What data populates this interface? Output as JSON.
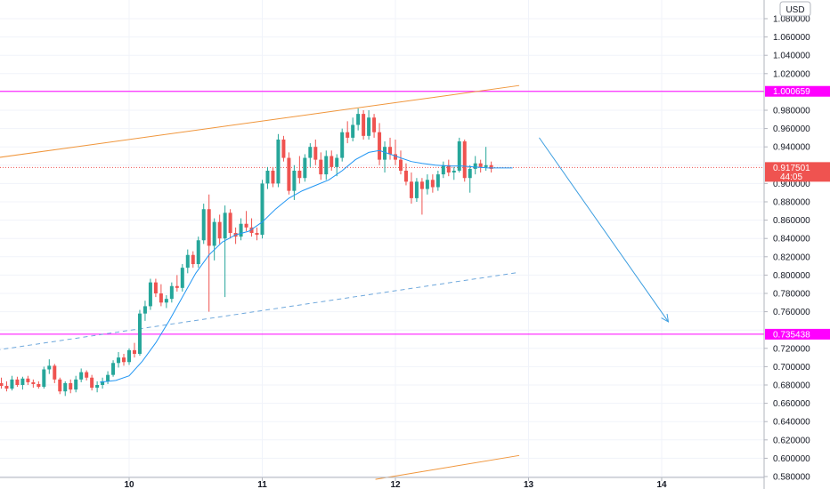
{
  "chart_data": {
    "type": "candlestick",
    "currency": "USD",
    "ylim": [
      0.58,
      1.09
    ],
    "y_ticks": [
      "1.080000",
      "1.060000",
      "1.040000",
      "1.020000",
      "0.980000",
      "0.960000",
      "0.940000",
      "0.900000",
      "0.880000",
      "0.860000",
      "0.840000",
      "0.820000",
      "0.800000",
      "0.780000",
      "0.760000",
      "0.720000",
      "0.700000",
      "0.680000",
      "0.660000",
      "0.640000",
      "0.620000",
      "0.600000",
      "0.580000"
    ],
    "x_labels": [
      {
        "label": "10",
        "t": 10
      },
      {
        "label": "11",
        "t": 11
      },
      {
        "label": "12",
        "t": 12
      },
      {
        "label": "13",
        "t": 13
      },
      {
        "label": "14",
        "t": 14
      }
    ],
    "xlim": [
      9.0,
      14.75
    ],
    "grid": true,
    "candles": [
      [
        9.0,
        0.678,
        0.685,
        0.672,
        0.682
      ],
      [
        9.04,
        0.682,
        0.688,
        0.676,
        0.679
      ],
      [
        9.08,
        0.679,
        0.684,
        0.673,
        0.676
      ],
      [
        9.12,
        0.676,
        0.69,
        0.674,
        0.686
      ],
      [
        9.16,
        0.686,
        0.689,
        0.678,
        0.68
      ],
      [
        9.2,
        0.68,
        0.689,
        0.675,
        0.687
      ],
      [
        9.24,
        0.687,
        0.69,
        0.68,
        0.683
      ],
      [
        9.28,
        0.683,
        0.686,
        0.677,
        0.681
      ],
      [
        9.32,
        0.681,
        0.684,
        0.676,
        0.678
      ],
      [
        9.36,
        0.678,
        0.7,
        0.676,
        0.697
      ],
      [
        9.4,
        0.697,
        0.708,
        0.692,
        0.701
      ],
      [
        9.44,
        0.701,
        0.703,
        0.682,
        0.686
      ],
      [
        9.48,
        0.686,
        0.688,
        0.67,
        0.673
      ],
      [
        9.52,
        0.673,
        0.684,
        0.668,
        0.682
      ],
      [
        9.56,
        0.682,
        0.686,
        0.671,
        0.675
      ],
      [
        9.6,
        0.675,
        0.69,
        0.672,
        0.686
      ],
      [
        9.64,
        0.686,
        0.698,
        0.683,
        0.694
      ],
      [
        9.68,
        0.694,
        0.696,
        0.685,
        0.688
      ],
      [
        9.72,
        0.688,
        0.691,
        0.674,
        0.677
      ],
      [
        9.76,
        0.677,
        0.684,
        0.672,
        0.68
      ],
      [
        9.8,
        0.68,
        0.688,
        0.676,
        0.684
      ],
      [
        9.84,
        0.684,
        0.695,
        0.681,
        0.691
      ],
      [
        9.88,
        0.691,
        0.707,
        0.689,
        0.704
      ],
      [
        9.92,
        0.704,
        0.716,
        0.699,
        0.71
      ],
      [
        9.96,
        0.71,
        0.714,
        0.701,
        0.705
      ],
      [
        10.0,
        0.705,
        0.72,
        0.702,
        0.718
      ],
      [
        10.04,
        0.718,
        0.726,
        0.71,
        0.714
      ],
      [
        10.08,
        0.714,
        0.762,
        0.712,
        0.758
      ],
      [
        10.12,
        0.758,
        0.772,
        0.75,
        0.766
      ],
      [
        10.16,
        0.766,
        0.796,
        0.762,
        0.792
      ],
      [
        10.2,
        0.792,
        0.796,
        0.776,
        0.78
      ],
      [
        10.24,
        0.78,
        0.79,
        0.766,
        0.77
      ],
      [
        10.28,
        0.77,
        0.778,
        0.764,
        0.774
      ],
      [
        10.32,
        0.774,
        0.792,
        0.77,
        0.788
      ],
      [
        10.36,
        0.788,
        0.8,
        0.782,
        0.786
      ],
      [
        10.4,
        0.786,
        0.812,
        0.782,
        0.808
      ],
      [
        10.44,
        0.808,
        0.828,
        0.802,
        0.822
      ],
      [
        10.48,
        0.822,
        0.826,
        0.808,
        0.812
      ],
      [
        10.52,
        0.812,
        0.842,
        0.808,
        0.838
      ],
      [
        10.56,
        0.838,
        0.878,
        0.834,
        0.872
      ],
      [
        10.6,
        0.872,
        0.888,
        0.76,
        0.832
      ],
      [
        10.64,
        0.832,
        0.862,
        0.816,
        0.858
      ],
      [
        10.68,
        0.858,
        0.866,
        0.834,
        0.84
      ],
      [
        10.72,
        0.84,
        0.876,
        0.776,
        0.868
      ],
      [
        10.76,
        0.868,
        0.872,
        0.84,
        0.846
      ],
      [
        10.8,
        0.846,
        0.852,
        0.834,
        0.842
      ],
      [
        10.84,
        0.842,
        0.862,
        0.838,
        0.856
      ],
      [
        10.88,
        0.856,
        0.87,
        0.848,
        0.852
      ],
      [
        10.92,
        0.852,
        0.862,
        0.842,
        0.846
      ],
      [
        10.96,
        0.846,
        0.852,
        0.838,
        0.844
      ],
      [
        11.0,
        0.844,
        0.904,
        0.84,
        0.9
      ],
      [
        11.04,
        0.9,
        0.918,
        0.894,
        0.914
      ],
      [
        11.08,
        0.914,
        0.918,
        0.896,
        0.9
      ],
      [
        11.12,
        0.9,
        0.954,
        0.896,
        0.948
      ],
      [
        11.16,
        0.948,
        0.952,
        0.924,
        0.928
      ],
      [
        11.2,
        0.928,
        0.934,
        0.888,
        0.892
      ],
      [
        11.24,
        0.892,
        0.92,
        0.882,
        0.914
      ],
      [
        11.28,
        0.914,
        0.93,
        0.9,
        0.906
      ],
      [
        11.32,
        0.906,
        0.932,
        0.902,
        0.928
      ],
      [
        11.36,
        0.928,
        0.944,
        0.918,
        0.94
      ],
      [
        11.4,
        0.94,
        0.948,
        0.92,
        0.926
      ],
      [
        11.44,
        0.926,
        0.934,
        0.904,
        0.91
      ],
      [
        11.48,
        0.91,
        0.936,
        0.904,
        0.93
      ],
      [
        11.52,
        0.93,
        0.936,
        0.914,
        0.918
      ],
      [
        11.56,
        0.918,
        0.932,
        0.908,
        0.928
      ],
      [
        11.6,
        0.928,
        0.96,
        0.924,
        0.956
      ],
      [
        11.64,
        0.956,
        0.968,
        0.944,
        0.95
      ],
      [
        11.68,
        0.95,
        0.972,
        0.946,
        0.964
      ],
      [
        11.72,
        0.964,
        0.982,
        0.958,
        0.976
      ],
      [
        11.76,
        0.976,
        0.98,
        0.948,
        0.952
      ],
      [
        11.8,
        0.952,
        0.98,
        0.948,
        0.972
      ],
      [
        11.84,
        0.972,
        0.976,
        0.95,
        0.956
      ],
      [
        11.88,
        0.956,
        0.966,
        0.92,
        0.926
      ],
      [
        11.92,
        0.926,
        0.946,
        0.912,
        0.94
      ],
      [
        11.96,
        0.94,
        0.95,
        0.926,
        0.932
      ],
      [
        12.0,
        0.932,
        0.948,
        0.92,
        0.926
      ],
      [
        12.04,
        0.926,
        0.936,
        0.91,
        0.914
      ],
      [
        12.08,
        0.914,
        0.922,
        0.898,
        0.902
      ],
      [
        12.12,
        0.902,
        0.912,
        0.878,
        0.884
      ],
      [
        12.16,
        0.884,
        0.906,
        0.88,
        0.902
      ],
      [
        12.2,
        0.902,
        0.906,
        0.866,
        0.894
      ],
      [
        12.24,
        0.894,
        0.91,
        0.888,
        0.904
      ],
      [
        12.28,
        0.904,
        0.91,
        0.89,
        0.896
      ],
      [
        12.32,
        0.896,
        0.914,
        0.892,
        0.91
      ],
      [
        12.36,
        0.91,
        0.924,
        0.906,
        0.92
      ],
      [
        12.4,
        0.92,
        0.926,
        0.908,
        0.912
      ],
      [
        12.44,
        0.912,
        0.918,
        0.904,
        0.914
      ],
      [
        12.48,
        0.914,
        0.95,
        0.912,
        0.946
      ],
      [
        12.52,
        0.946,
        0.948,
        0.902,
        0.906
      ],
      [
        12.56,
        0.906,
        0.92,
        0.89,
        0.916
      ],
      [
        12.6,
        0.916,
        0.93,
        0.91,
        0.922
      ],
      [
        12.64,
        0.922,
        0.926,
        0.912,
        0.918
      ],
      [
        12.68,
        0.918,
        0.94,
        0.914,
        0.92
      ],
      [
        12.72,
        0.92,
        0.924,
        0.912,
        0.916
      ]
    ],
    "moving_average": [
      [
        9.78,
        0.683
      ],
      [
        9.9,
        0.685
      ],
      [
        10.0,
        0.69
      ],
      [
        10.1,
        0.706
      ],
      [
        10.2,
        0.726
      ],
      [
        10.3,
        0.75
      ],
      [
        10.4,
        0.776
      ],
      [
        10.5,
        0.802
      ],
      [
        10.6,
        0.822
      ],
      [
        10.7,
        0.836
      ],
      [
        10.8,
        0.844
      ],
      [
        10.9,
        0.848
      ],
      [
        11.0,
        0.858
      ],
      [
        11.1,
        0.872
      ],
      [
        11.2,
        0.884
      ],
      [
        11.3,
        0.892
      ],
      [
        11.4,
        0.898
      ],
      [
        11.5,
        0.904
      ],
      [
        11.6,
        0.914
      ],
      [
        11.7,
        0.926
      ],
      [
        11.8,
        0.934
      ],
      [
        11.88,
        0.936
      ],
      [
        11.96,
        0.932
      ],
      [
        12.04,
        0.928
      ],
      [
        12.12,
        0.924
      ],
      [
        12.2,
        0.922
      ],
      [
        12.3,
        0.92
      ],
      [
        12.4,
        0.919
      ],
      [
        12.5,
        0.919
      ],
      [
        12.6,
        0.918
      ],
      [
        12.7,
        0.917
      ],
      [
        12.8,
        0.917
      ],
      [
        12.88,
        0.917
      ]
    ],
    "horizontal_lines": [
      {
        "value": 1.000659,
        "label": "1.000659",
        "color": "#ff00ff"
      },
      {
        "value": 0.735438,
        "label": "0.735438",
        "color": "#ff00ff"
      }
    ],
    "trend_lines": [
      {
        "from": [
          9.0,
          0.928
        ],
        "to": [
          12.93,
          1.007
        ],
        "color": "#f0963c",
        "dashed": false
      },
      {
        "from": [
          11.85,
          0.577
        ],
        "to": [
          12.93,
          0.603
        ],
        "color": "#f0963c",
        "dashed": false
      },
      {
        "from": [
          9.0,
          0.718
        ],
        "to": [
          12.93,
          0.803
        ],
        "color": "#6fa8dc",
        "dashed": true
      }
    ],
    "arrow": {
      "from": [
        13.08,
        0.95
      ],
      "to": [
        14.05,
        0.749
      ],
      "color": "#3d9ee0"
    },
    "last_price": {
      "value": 0.917501,
      "label": "0.917501",
      "countdown": "44:05",
      "color": "#ef5350"
    },
    "colors": {
      "up": "#26a69a",
      "down": "#ef5350"
    }
  }
}
